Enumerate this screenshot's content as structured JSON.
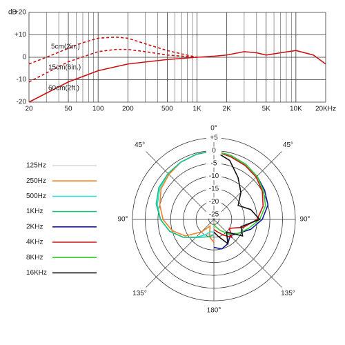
{
  "chart_data": [
    {
      "type": "line",
      "y_label": "dB",
      "xscale": "log",
      "grid": true,
      "xlim": [
        20,
        20000
      ],
      "ylim": [
        -20,
        20
      ],
      "xticks": [
        20,
        50,
        100,
        200,
        500,
        {
          "value": 1000,
          "label": "1K"
        },
        {
          "value": 2000,
          "label": "2K"
        },
        {
          "value": 5000,
          "label": "5K"
        },
        {
          "value": 10000,
          "label": "10K"
        },
        {
          "value": 20000,
          "label": "20KHz"
        }
      ],
      "xminor": [
        30,
        40,
        60,
        70,
        80,
        90,
        300,
        400,
        600,
        700,
        800,
        900,
        3000,
        4000,
        6000,
        7000,
        8000,
        9000
      ],
      "yticks": [
        {
          "value": 20,
          "label": "+20"
        },
        {
          "value": 10,
          "label": "+10"
        },
        0,
        -10,
        -20
      ],
      "series": [
        {
          "name": "5cm(2in.)",
          "color": "#cc1111",
          "dash": true,
          "x": [
            20,
            30,
            50,
            70,
            100,
            150,
            200,
            300,
            500,
            700,
            1000
          ],
          "values": [
            -3,
            0,
            4,
            6.5,
            8.5,
            9,
            8.5,
            6,
            3,
            1.5,
            0
          ]
        },
        {
          "name": "15cm(6in.)",
          "color": "#cc1111",
          "dash": true,
          "x": [
            20,
            30,
            50,
            100,
            150,
            200,
            300,
            500,
            1000
          ],
          "values": [
            -11,
            -7,
            -2,
            2.5,
            3.5,
            3.5,
            2.5,
            1,
            0
          ]
        },
        {
          "name": "60cm(2ft.)",
          "color": "#cc1111",
          "dash": false,
          "x": [
            20,
            30,
            50,
            100,
            200,
            500,
            1000
          ],
          "values": [
            -20,
            -16,
            -11,
            -6,
            -3,
            -1,
            0
          ]
        },
        {
          "color": "#cc1111",
          "dash": false,
          "x": [
            1000,
            1500,
            2000,
            3000,
            4000,
            5000,
            7000,
            10000,
            15000,
            20000
          ],
          "values": [
            0,
            0.5,
            1,
            2.5,
            2,
            1,
            2,
            3,
            1,
            -3
          ]
        }
      ]
    },
    {
      "type": "polar",
      "rlim": [
        -27,
        5
      ],
      "rticks": [
        {
          "value": 5,
          "label": "+5"
        },
        0,
        -5,
        -10,
        -15,
        -20,
        -25
      ],
      "angle_ticks": [
        {
          "value": 0,
          "label": "0°"
        },
        {
          "value": 45,
          "label": "45°"
        },
        {
          "value": 90,
          "label": "90°"
        },
        {
          "value": 135,
          "label": "135°"
        },
        {
          "value": 180,
          "label": "180°"
        },
        {
          "value": -45,
          "label": "45°"
        },
        {
          "value": -90,
          "label": "90°"
        },
        {
          "value": -135,
          "label": "135°"
        }
      ],
      "angles": [
        0,
        15,
        30,
        45,
        60,
        75,
        90,
        105,
        120,
        135,
        150,
        165,
        180
      ],
      "series": [
        {
          "name": "125Hz",
          "color": "#d8d8d8",
          "side": "left",
          "values": [
            0,
            -0.5,
            -1,
            -1.5,
            -2.5,
            -4,
            -6,
            -9,
            -13,
            -17,
            -20,
            -21,
            -21
          ]
        },
        {
          "name": "250Hz",
          "color": "#f08020",
          "side": "left",
          "values": [
            0,
            -0.5,
            -1,
            -2,
            -3,
            -5,
            -7,
            -10,
            -14,
            -20,
            -24,
            -20,
            -18
          ]
        },
        {
          "name": "500Hz",
          "color": "#30e0e0",
          "side": "left",
          "values": [
            0,
            -0.5,
            -1,
            -1.5,
            -2.5,
            -4,
            -6,
            -9,
            -13,
            -17,
            -20,
            -22,
            -22
          ]
        },
        {
          "name": "1KHz",
          "color": "#20c080",
          "side": "left",
          "values": [
            0,
            -0.5,
            -1,
            -1.5,
            -2,
            -3.5,
            -6,
            -9,
            -13,
            -17,
            -19,
            -20,
            -21
          ]
        },
        {
          "name": "2KHz",
          "color": "#10189a",
          "side": "right",
          "values": [
            0,
            -1,
            -2,
            -3,
            -4,
            -5,
            -8,
            -12,
            -16,
            -18,
            -16,
            -15,
            -16
          ]
        },
        {
          "name": "4KHz",
          "color": "#cc1111",
          "side": "right",
          "values": [
            0,
            -1.5,
            -2.5,
            -3.5,
            -5,
            -7,
            -10,
            -15,
            -20,
            -17,
            -20,
            -22,
            -23
          ]
        },
        {
          "name": "8KHz",
          "color": "#30d030",
          "side": "right",
          "values": [
            0,
            -1,
            -2,
            -3,
            -4.5,
            -6,
            -9,
            -13,
            -16,
            -19,
            -22,
            -24,
            -25
          ]
        },
        {
          "name": "16KHz",
          "color": "#111111",
          "side": "right",
          "values": [
            0,
            -3,
            -8,
            -12,
            -16,
            -12,
            -9,
            -16,
            -14,
            -20,
            -16,
            -20,
            -22
          ]
        }
      ]
    }
  ]
}
